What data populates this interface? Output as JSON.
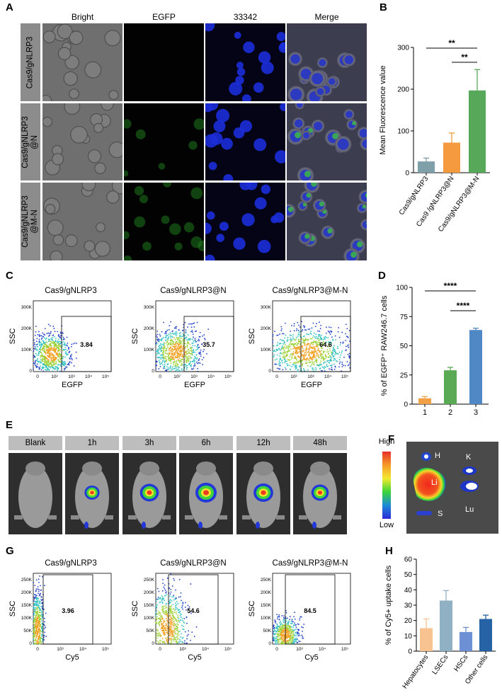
{
  "panel_labels": {
    "A": "A",
    "B": "B",
    "C": "C",
    "D": "D",
    "E": "E",
    "F": "F",
    "G": "G",
    "H": "H"
  },
  "micrograph": {
    "columns": [
      "Bright",
      "EGFP",
      "33342",
      "Merge"
    ],
    "rows": [
      "Cas9/gNLRP3",
      "Cas9/gNLRP3\n@N",
      "Cas9/gNLRP3\n@M-N"
    ]
  },
  "flow_c": {
    "titles": [
      "Cas9/gNLRP3",
      "Cas9/gNLRP3@N",
      "Cas9/gNLRP3@M-N"
    ],
    "gate_values": [
      "3.84",
      "35.7",
      "64.6"
    ],
    "xlabel": "EGFP",
    "ylabel": "SSC",
    "y_ticks": [
      "0",
      "100K",
      "200K",
      "300K"
    ],
    "x_ticks": [
      "0",
      "10²",
      "10³",
      "10⁴",
      "10⁵"
    ]
  },
  "flow_g": {
    "titles": [
      "Cas9/gNLRP3",
      "Cas9/gNLRP3@N",
      "Cas9/gNLRP3@M-N"
    ],
    "gate_values": [
      "3.96",
      "54.6",
      "84.5"
    ],
    "xlabel": "Cy5",
    "ylabel": "SSC",
    "y_ticks": [
      "0",
      "50K",
      "100K",
      "150K",
      "200K",
      "250K"
    ],
    "x_ticks": [
      "0",
      "10³",
      "10⁴",
      "10⁵"
    ]
  },
  "timepoints": [
    "Blank",
    "1h",
    "3h",
    "6h",
    "12h",
    "48h"
  ],
  "colorbar": {
    "high": "High",
    "low": "Low"
  },
  "organs": [
    "H",
    "K",
    "Li",
    "S",
    "Lu"
  ],
  "chart_data": [
    {
      "panel": "B",
      "type": "bar",
      "categories": [
        "Cas9/gNLRP3",
        "Cas9 /gNLRP3@N",
        "Cas9/gNLRP3@M-N"
      ],
      "values": [
        27,
        72,
        197
      ],
      "errors": [
        8,
        23,
        50
      ],
      "colors": [
        "#7f9fa9",
        "#f59a3e",
        "#58a85a"
      ],
      "ylabel": "Mean Fluorescence value",
      "ylim": [
        0,
        300
      ],
      "yticks": [
        0,
        100,
        200,
        300
      ],
      "significance": [
        {
          "from": 0,
          "to": 2,
          "label": "**"
        },
        {
          "from": 1,
          "to": 2,
          "label": "**"
        }
      ]
    },
    {
      "panel": "D",
      "type": "bar",
      "categories": [
        "1",
        "2",
        "3"
      ],
      "values": [
        5,
        29,
        63.5
      ],
      "errors": [
        1.5,
        2.5,
        1.5
      ],
      "colors": [
        "#f2a047",
        "#5aaa55",
        "#4f88c4"
      ],
      "ylabel": "% of EGFP⁺ RAW246.7 cells",
      "ylim": [
        0,
        100
      ],
      "yticks": [
        0,
        25,
        50,
        75,
        100
      ],
      "significance": [
        {
          "from": 0,
          "to": 2,
          "label": "****"
        },
        {
          "from": 1,
          "to": 2,
          "label": "****"
        }
      ]
    },
    {
      "panel": "H",
      "type": "bar",
      "categories": [
        "Hepatocytes",
        "LSECs",
        "HSCs",
        "Other cells"
      ],
      "values": [
        15,
        33,
        12.5,
        21
      ],
      "errors": [
        6,
        6.5,
        3,
        2.5
      ],
      "colors": [
        "#f8c391",
        "#8fb1c3",
        "#6d8fd4",
        "#2563a6"
      ],
      "ylabel": "% of Cy5+ uptake cells",
      "ylim": [
        0,
        60
      ],
      "yticks": [
        0,
        10,
        20,
        30,
        40,
        50,
        60
      ]
    }
  ]
}
